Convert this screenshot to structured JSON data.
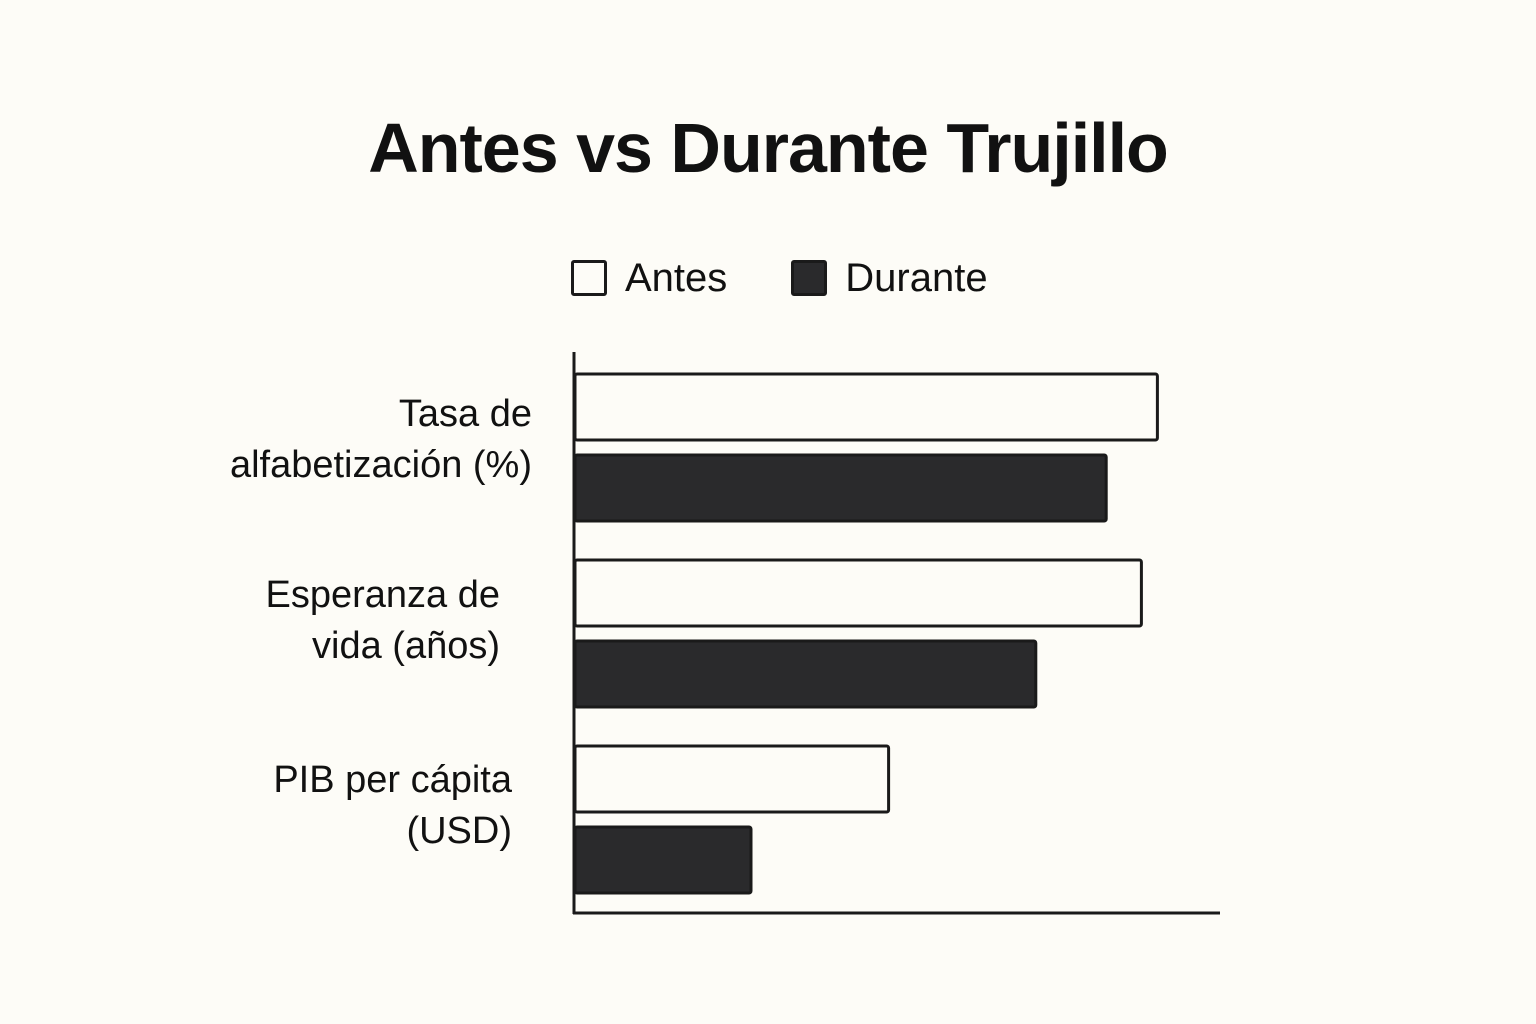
{
  "chart_data": {
    "type": "bar",
    "orientation": "horizontal",
    "title": "Antes vs Durante Trujillo",
    "categories": [
      "Tasa de alfabetización (%)",
      "Esperanza de vida (años)",
      "PIB per cápita (USD)"
    ],
    "category_lines": [
      [
        "Tasa de",
        "alfabetización (%)"
      ],
      [
        "Esperanza de",
        "vida (años)"
      ],
      [
        "PIB per cápita",
        "(USD)"
      ]
    ],
    "series": [
      {
        "name": "Antes",
        "values": [
          91,
          88.5,
          49
        ],
        "color": "#fdfcf7",
        "stroke": "#1a1a1a"
      },
      {
        "name": "Durante",
        "values": [
          83,
          72,
          27.5
        ],
        "color": "#2a2a2c",
        "stroke": "#1a1a1a"
      }
    ],
    "xlim": [
      0,
      100
    ],
    "grid": false,
    "legend": "top"
  }
}
